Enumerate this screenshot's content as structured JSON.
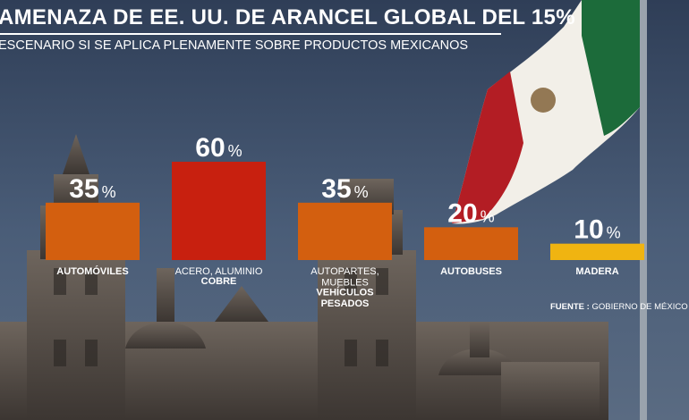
{
  "headline": "AMENAZA DE EE. UU. DE ARANCEL GLOBAL DEL 15%",
  "subtitle": "ESCENARIO SI SE APLICA PLENAMENTE SOBRE PRODUCTOS MEXICANOS",
  "source": {
    "label": "FUENTE :",
    "value": "GOBIERNO DE MÉXICO"
  },
  "colors": {
    "bar": "#d35f0f",
    "bar_max": "#c8200f",
    "bar_min": "#f0b411"
  },
  "chart_data": {
    "type": "bar",
    "title": "AMENAZA DE EE. UU. DE ARANCEL GLOBAL DEL 15%",
    "unit": "%",
    "categories": [
      [
        {
          "text": "AUTOMÓVILES",
          "bold": true
        }
      ],
      [
        {
          "text": "ACERO, ALUMINIO",
          "bold": false
        },
        {
          "text": "COBRE",
          "bold": true
        }
      ],
      [
        {
          "text": "AUTOPARTES,",
          "bold": false
        },
        {
          "text": "MUEBLES",
          "bold": false
        },
        {
          "text": "VEHÍCULOS",
          "bold": true
        },
        {
          "text": "PESADOS",
          "bold": true
        }
      ],
      [
        {
          "text": "AUTOBUSES",
          "bold": true
        }
      ],
      [
        {
          "text": "MADERA",
          "bold": true
        }
      ]
    ],
    "values": [
      35,
      60,
      35,
      20,
      10
    ],
    "value_labels": [
      "35",
      "60",
      "35",
      "20",
      "10"
    ],
    "ylim": [
      0,
      60
    ]
  }
}
